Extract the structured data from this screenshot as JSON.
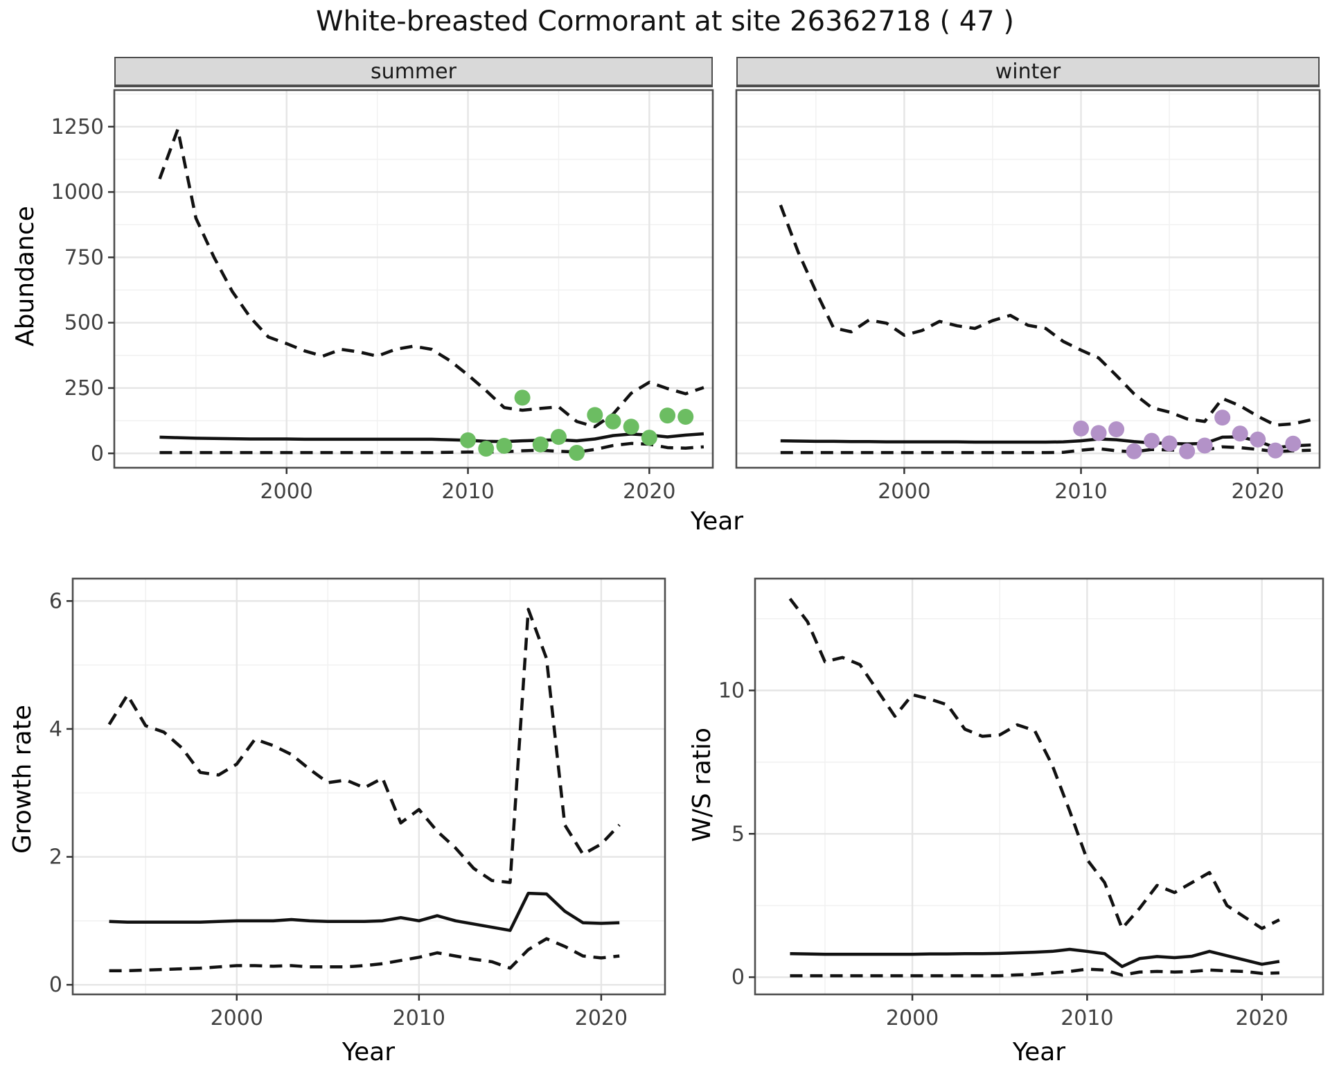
{
  "title": "White-breasted Cormorant at site 26362718 ( 47 )",
  "facets": {
    "summer": "summer",
    "winter": "winter"
  },
  "axis_titles": {
    "x": "Year",
    "abundance": "Abundance",
    "growth_rate": "Growth rate",
    "ws_ratio": "W/S ratio"
  },
  "colors": {
    "summer_point": "#6CBD62",
    "winter_point": "#B392C8",
    "line": "#111111",
    "strip_bg": "#D9D9D9",
    "grid_major": "#E5E5E5",
    "grid_minor": "#F1F1F1",
    "panel_border": "#4D4D4D",
    "tick_text": "#404040"
  },
  "chart_data": [
    {
      "type": "line",
      "panel": "abundance-summer",
      "strip": "summer",
      "xlabel": "Year",
      "ylabel": "Abundance",
      "xlim": [
        1990.5,
        2023.5
      ],
      "ylim": [
        -55,
        1390
      ],
      "xticks": [
        2000,
        2010,
        2020
      ],
      "yticks": [
        0,
        250,
        500,
        750,
        1000,
        1250
      ],
      "grid": true,
      "series": [
        {
          "name": "upper-credible-bound",
          "style": "dashed",
          "x": [
            1993,
            1994,
            1995,
            1996,
            1997,
            1998,
            1999,
            2000,
            2001,
            2002,
            2003,
            2004,
            2005,
            2006,
            2007,
            2008,
            2009,
            2010,
            2011,
            2012,
            2013,
            2014,
            2015,
            2016,
            2017,
            2018,
            2019,
            2020,
            2021,
            2022,
            2023
          ],
          "y": [
            1050,
            1240,
            900,
            750,
            620,
            520,
            445,
            420,
            392,
            372,
            398,
            388,
            372,
            398,
            410,
            398,
            355,
            300,
            240,
            175,
            165,
            172,
            178,
            122,
            102,
            150,
            230,
            272,
            248,
            228,
            252
          ]
        },
        {
          "name": "median-abundance",
          "style": "solid",
          "x": [
            1993,
            1994,
            1995,
            1996,
            1997,
            1998,
            1999,
            2000,
            2001,
            2002,
            2003,
            2004,
            2005,
            2006,
            2007,
            2008,
            2009,
            2010,
            2011,
            2012,
            2013,
            2014,
            2015,
            2016,
            2017,
            2018,
            2019,
            2020,
            2021,
            2022,
            2023
          ],
          "y": [
            62,
            60,
            58,
            57,
            56,
            55,
            55,
            55,
            54,
            54,
            54,
            54,
            54,
            54,
            54,
            54,
            52,
            50,
            46,
            45,
            48,
            50,
            52,
            48,
            55,
            68,
            74,
            70,
            63,
            70,
            75
          ]
        },
        {
          "name": "lower-credible-bound",
          "style": "dashed",
          "x": [
            1993,
            1994,
            1995,
            1996,
            1997,
            1998,
            1999,
            2000,
            2001,
            2002,
            2003,
            2004,
            2005,
            2006,
            2007,
            2008,
            2009,
            2010,
            2011,
            2012,
            2013,
            2014,
            2015,
            2016,
            2017,
            2018,
            2019,
            2020,
            2021,
            2022,
            2023
          ],
          "y": [
            3,
            3,
            3,
            3,
            3,
            3,
            3,
            3,
            3,
            3,
            3,
            3,
            3,
            3,
            3,
            3,
            4,
            5,
            5,
            6,
            10,
            12,
            8,
            5,
            15,
            30,
            38,
            35,
            22,
            20,
            25
          ]
        },
        {
          "name": "observed-counts-summer",
          "style": "points",
          "color": "#6CBD62",
          "x": [
            2010,
            2011,
            2012,
            2013,
            2014,
            2015,
            2016,
            2017,
            2018,
            2019,
            2020,
            2021,
            2022
          ],
          "y": [
            50,
            18,
            29,
            213,
            34,
            63,
            2,
            147,
            122,
            102,
            60,
            145,
            140
          ]
        }
      ]
    },
    {
      "type": "line",
      "panel": "abundance-winter",
      "strip": "winter",
      "xlabel": "Year",
      "ylabel": "Abundance",
      "xlim": [
        1990.5,
        2023.5
      ],
      "ylim": [
        -55,
        1390
      ],
      "xticks": [
        2000,
        2010,
        2020
      ],
      "yticks": [
        0,
        250,
        500,
        750,
        1000,
        1250
      ],
      "grid": true,
      "series": [
        {
          "name": "upper-credible-bound",
          "style": "dashed",
          "x": [
            1993,
            1994,
            1995,
            1996,
            1997,
            1998,
            1999,
            2000,
            2001,
            2002,
            2003,
            2004,
            2005,
            2006,
            2007,
            2008,
            2009,
            2010,
            2011,
            2012,
            2013,
            2014,
            2015,
            2016,
            2017,
            2018,
            2019,
            2020,
            2021,
            2022,
            2023
          ],
          "y": [
            950,
            770,
            620,
            480,
            465,
            510,
            498,
            452,
            470,
            505,
            488,
            478,
            508,
            528,
            490,
            478,
            428,
            395,
            365,
            298,
            228,
            175,
            158,
            132,
            122,
            210,
            182,
            142,
            108,
            113,
            128
          ]
        },
        {
          "name": "median-abundance",
          "style": "solid",
          "x": [
            1993,
            1994,
            1995,
            1996,
            1997,
            1998,
            1999,
            2000,
            2001,
            2002,
            2003,
            2004,
            2005,
            2006,
            2007,
            2008,
            2009,
            2010,
            2011,
            2012,
            2013,
            2014,
            2015,
            2016,
            2017,
            2018,
            2019,
            2020,
            2021,
            2022,
            2023
          ],
          "y": [
            48,
            47,
            46,
            46,
            45,
            45,
            44,
            44,
            44,
            44,
            44,
            43,
            43,
            43,
            43,
            43,
            44,
            48,
            55,
            52,
            45,
            40,
            38,
            36,
            38,
            62,
            63,
            47,
            22,
            29,
            32
          ]
        },
        {
          "name": "lower-credible-bound",
          "style": "dashed",
          "x": [
            1993,
            1994,
            1995,
            1996,
            1997,
            1998,
            1999,
            2000,
            2001,
            2002,
            2003,
            2004,
            2005,
            2006,
            2007,
            2008,
            2009,
            2010,
            2011,
            2012,
            2013,
            2014,
            2015,
            2016,
            2017,
            2018,
            2019,
            2020,
            2021,
            2022,
            2023
          ],
          "y": [
            3,
            3,
            3,
            3,
            3,
            3,
            3,
            3,
            3,
            3,
            3,
            3,
            3,
            3,
            3,
            3,
            4,
            12,
            18,
            10,
            6,
            15,
            13,
            11,
            13,
            25,
            22,
            15,
            7,
            10,
            12
          ]
        },
        {
          "name": "observed-counts-winter",
          "style": "points",
          "color": "#B392C8",
          "x": [
            2010,
            2011,
            2012,
            2013,
            2014,
            2015,
            2016,
            2017,
            2018,
            2019,
            2020,
            2021,
            2022
          ],
          "y": [
            95,
            78,
            92,
            8,
            48,
            38,
            8,
            30,
            137,
            76,
            53,
            11,
            37
          ]
        }
      ]
    },
    {
      "type": "line",
      "panel": "growth-rate",
      "xlabel": "Year",
      "ylabel": "Growth rate",
      "xlim": [
        1991,
        2023.5
      ],
      "ylim": [
        -0.15,
        6.35
      ],
      "xticks": [
        2000,
        2010,
        2020
      ],
      "yticks": [
        0,
        2,
        4,
        6
      ],
      "grid": true,
      "series": [
        {
          "name": "upper-credible-bound",
          "style": "dashed",
          "x": [
            1993,
            1994,
            1995,
            1996,
            1997,
            1998,
            1999,
            2000,
            2001,
            2002,
            2003,
            2004,
            2005,
            2006,
            2007,
            2008,
            2009,
            2010,
            2011,
            2012,
            2013,
            2014,
            2015,
            2016,
            2017,
            2018,
            2019,
            2020,
            2021
          ],
          "y": [
            4.07,
            4.53,
            4.05,
            3.95,
            3.7,
            3.32,
            3.28,
            3.45,
            3.84,
            3.74,
            3.6,
            3.37,
            3.16,
            3.2,
            3.08,
            3.23,
            2.53,
            2.74,
            2.4,
            2.14,
            1.82,
            1.63,
            1.6,
            5.87,
            5.1,
            2.5,
            2.04,
            2.2,
            2.5
          ]
        },
        {
          "name": "median-growth-rate",
          "style": "solid",
          "x": [
            1993,
            1994,
            1995,
            1996,
            1997,
            1998,
            1999,
            2000,
            2001,
            2002,
            2003,
            2004,
            2005,
            2006,
            2007,
            2008,
            2009,
            2010,
            2011,
            2012,
            2013,
            2014,
            2015,
            2016,
            2017,
            2018,
            2019,
            2020,
            2021
          ],
          "y": [
            0.99,
            0.98,
            0.98,
            0.98,
            0.98,
            0.98,
            0.99,
            1.0,
            1.0,
            1.0,
            1.02,
            1.0,
            0.99,
            0.99,
            0.99,
            1.0,
            1.05,
            1.0,
            1.08,
            1.0,
            0.95,
            0.9,
            0.85,
            1.43,
            1.42,
            1.15,
            0.97,
            0.96,
            0.97
          ]
        },
        {
          "name": "lower-credible-bound",
          "style": "dashed",
          "x": [
            1993,
            1994,
            1995,
            1996,
            1997,
            1998,
            1999,
            2000,
            2001,
            2002,
            2003,
            2004,
            2005,
            2006,
            2007,
            2008,
            2009,
            2010,
            2011,
            2012,
            2013,
            2014,
            2015,
            2016,
            2017,
            2018,
            2019,
            2020,
            2021
          ],
          "y": [
            0.22,
            0.22,
            0.23,
            0.24,
            0.25,
            0.26,
            0.28,
            0.3,
            0.3,
            0.29,
            0.3,
            0.28,
            0.28,
            0.28,
            0.3,
            0.33,
            0.38,
            0.43,
            0.5,
            0.45,
            0.4,
            0.36,
            0.26,
            0.55,
            0.72,
            0.6,
            0.45,
            0.42,
            0.45
          ]
        }
      ]
    },
    {
      "type": "line",
      "panel": "ws-ratio",
      "xlabel": "Year",
      "ylabel": "W/S ratio",
      "xlim": [
        1991,
        2023.5
      ],
      "ylim": [
        -0.6,
        13.9
      ],
      "xticks": [
        2000,
        2010,
        2020
      ],
      "yticks": [
        0,
        5,
        10
      ],
      "grid": true,
      "series": [
        {
          "name": "upper-credible-bound",
          "style": "dashed",
          "x": [
            1993,
            1994,
            1995,
            1996,
            1997,
            1998,
            1999,
            2000,
            2001,
            2002,
            2003,
            2004,
            2005,
            2006,
            2007,
            2008,
            2009,
            2010,
            2011,
            2012,
            2013,
            2014,
            2015,
            2016,
            2017,
            2018,
            2019,
            2020,
            2021
          ],
          "y": [
            13.2,
            12.4,
            11.0,
            11.15,
            10.9,
            10.0,
            9.1,
            9.85,
            9.7,
            9.5,
            8.65,
            8.4,
            8.45,
            8.8,
            8.6,
            7.4,
            5.8,
            4.1,
            3.3,
            1.7,
            2.4,
            3.2,
            2.95,
            3.3,
            3.65,
            2.5,
            2.1,
            1.7,
            2.0
          ]
        },
        {
          "name": "median-ws-ratio",
          "style": "solid",
          "x": [
            1993,
            1994,
            1995,
            1996,
            1997,
            1998,
            1999,
            2000,
            2001,
            2002,
            2003,
            2004,
            2005,
            2006,
            2007,
            2008,
            2009,
            2010,
            2011,
            2012,
            2013,
            2014,
            2015,
            2016,
            2017,
            2018,
            2019,
            2020,
            2021
          ],
          "y": [
            0.82,
            0.81,
            0.8,
            0.8,
            0.8,
            0.8,
            0.8,
            0.8,
            0.81,
            0.81,
            0.82,
            0.82,
            0.83,
            0.85,
            0.87,
            0.9,
            0.97,
            0.9,
            0.82,
            0.37,
            0.65,
            0.72,
            0.68,
            0.73,
            0.9,
            0.75,
            0.6,
            0.45,
            0.55
          ]
        },
        {
          "name": "lower-credible-bound",
          "style": "dashed",
          "x": [
            1993,
            1994,
            1995,
            1996,
            1997,
            1998,
            1999,
            2000,
            2001,
            2002,
            2003,
            2004,
            2005,
            2006,
            2007,
            2008,
            2009,
            2010,
            2011,
            2012,
            2013,
            2014,
            2015,
            2016,
            2017,
            2018,
            2019,
            2020,
            2021
          ],
          "y": [
            0.05,
            0.05,
            0.05,
            0.05,
            0.05,
            0.05,
            0.05,
            0.05,
            0.05,
            0.05,
            0.05,
            0.05,
            0.05,
            0.08,
            0.1,
            0.15,
            0.2,
            0.28,
            0.25,
            0.07,
            0.18,
            0.2,
            0.18,
            0.2,
            0.25,
            0.22,
            0.2,
            0.13,
            0.15
          ]
        }
      ]
    }
  ]
}
